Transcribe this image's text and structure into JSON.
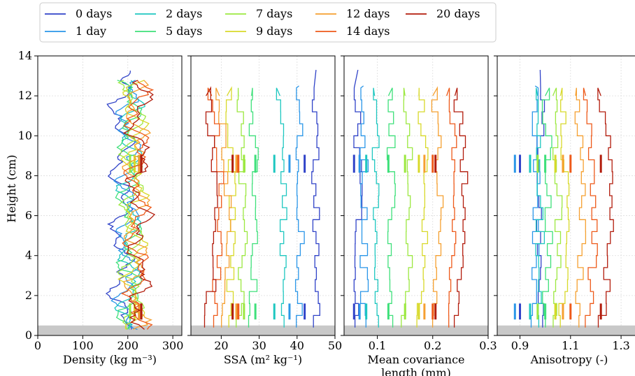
{
  "chart_data": {
    "type": "line",
    "legend": {
      "placement": "top",
      "entries": [
        {
          "label": "0 days",
          "color": "#3043c8"
        },
        {
          "label": "1 day",
          "color": "#2a96e8"
        },
        {
          "label": "2 days",
          "color": "#1ec7c0"
        },
        {
          "label": "5 days",
          "color": "#3ee07a"
        },
        {
          "label": "7 days",
          "color": "#9ce840"
        },
        {
          "label": "9 days",
          "color": "#d8d92a"
        },
        {
          "label": "12 days",
          "color": "#f5a030"
        },
        {
          "label": "14 days",
          "color": "#ee5a1a"
        },
        {
          "label": "20 days",
          "color": "#b21c0c"
        }
      ]
    },
    "ylabel": "Height (cm)",
    "ylim": [
      0,
      14
    ],
    "yticks": [
      "0",
      "2",
      "4",
      "6",
      "8",
      "10",
      "12",
      "14"
    ],
    "ground_band": [
      0,
      0.5
    ],
    "grid": true,
    "panels": [
      {
        "xlabel_lines": [
          "Density (kg m⁻³)"
        ],
        "xlim": [
          0,
          320
        ],
        "xticks": [
          {
            "v": 0,
            "label": "0"
          },
          {
            "v": 100,
            "label": "100"
          },
          {
            "v": 200,
            "label": "200"
          },
          {
            "v": 300,
            "label": "300"
          }
        ],
        "kind": "wiggle",
        "centers": [
          185,
          200,
          205,
          205,
          210,
          215,
          218,
          220,
          225
        ],
        "bars": [
          225,
          205,
          205,
          230,
          205,
          215,
          225,
          230,
          230
        ]
      },
      {
        "xlabel_lines": [
          "SSA (m² kg⁻¹)"
        ],
        "xlim": [
          12,
          50
        ],
        "xticks": [
          {
            "v": 20,
            "label": "20"
          },
          {
            "v": 30,
            "label": "30"
          },
          {
            "v": 40,
            "label": "40"
          },
          {
            "v": 50,
            "label": "50"
          }
        ],
        "kind": "step",
        "centers": [
          45,
          40.5,
          35.5,
          28,
          24.5,
          21.5,
          19.5,
          17.5,
          16
        ],
        "bars": [
          42,
          38,
          34,
          29,
          26,
          23,
          24,
          24.5,
          23
        ]
      },
      {
        "xlabel_lines": [
          "Mean covariance",
          "length (mm)"
        ],
        "xlim": [
          0.04,
          0.3
        ],
        "xticks": [
          {
            "v": 0.1,
            "label": "0.1"
          },
          {
            "v": 0.2,
            "label": "0.2"
          },
          {
            "v": 0.3,
            "label": "0.3"
          }
        ],
        "kind": "step",
        "centers": [
          0.065,
          0.075,
          0.095,
          0.12,
          0.15,
          0.175,
          0.2,
          0.225,
          0.24
        ],
        "bars": [
          0.058,
          0.068,
          0.08,
          0.12,
          0.15,
          0.175,
          0.185,
          0.2,
          0.205
        ]
      },
      {
        "xlabel_lines": [
          "Anisotropy (-)"
        ],
        "xlim": [
          0.81,
          1.38
        ],
        "xticks": [
          {
            "v": 0.9,
            "label": "0.9"
          },
          {
            "v": 1.1,
            "label": "1.1"
          },
          {
            "v": 1.3,
            "label": "1.3"
          }
        ],
        "kind": "step",
        "centers": [
          0.98,
          0.96,
          0.97,
          1.0,
          1.03,
          1.06,
          1.12,
          1.16,
          1.22
        ],
        "bars": [
          0.9,
          0.88,
          0.94,
          1.0,
          0.97,
          1.04,
          1.07,
          1.1,
          1.22
        ]
      }
    ]
  }
}
